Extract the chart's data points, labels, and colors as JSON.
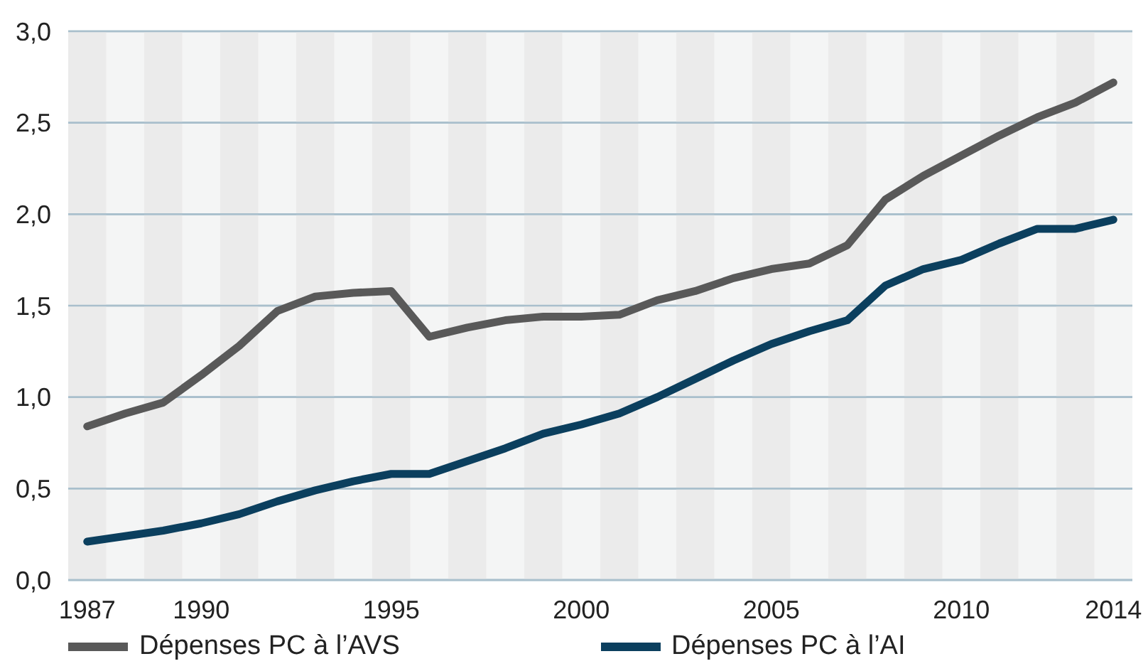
{
  "chart_data": {
    "type": "line",
    "x": [
      1987,
      1988,
      1989,
      1990,
      1991,
      1992,
      1993,
      1994,
      1995,
      1996,
      1997,
      1998,
      1999,
      2000,
      2001,
      2002,
      2003,
      2004,
      2005,
      2006,
      2007,
      2008,
      2009,
      2010,
      2011,
      2012,
      2013,
      2014
    ],
    "series": [
      {
        "name": "Dépenses PC à l’AVS",
        "color": "#595959",
        "values": [
          0.84,
          0.91,
          0.97,
          1.12,
          1.28,
          1.47,
          1.55,
          1.57,
          1.58,
          1.33,
          1.38,
          1.42,
          1.44,
          1.44,
          1.45,
          1.53,
          1.58,
          1.65,
          1.7,
          1.73,
          1.83,
          2.08,
          2.21,
          2.32,
          2.43,
          2.53,
          2.61,
          2.72
        ]
      },
      {
        "name": "Dépenses PC à l’AI",
        "color": "#0b3f5e",
        "values": [
          0.21,
          0.24,
          0.27,
          0.31,
          0.36,
          0.43,
          0.49,
          0.54,
          0.58,
          0.58,
          0.65,
          0.72,
          0.8,
          0.85,
          0.91,
          1.0,
          1.1,
          1.2,
          1.29,
          1.36,
          1.42,
          1.61,
          1.7,
          1.75,
          1.84,
          1.92,
          1.92,
          1.97
        ]
      }
    ],
    "xlim": [
      1986.5,
      2014.5
    ],
    "xticks": [
      1987,
      1990,
      1995,
      2000,
      2005,
      2010,
      2014
    ],
    "ylim": [
      0,
      3
    ],
    "yticks": [
      {
        "value": 0,
        "label": "0,0"
      },
      {
        "value": 0.5,
        "label": "0,5"
      },
      {
        "value": 1,
        "label": "1,0"
      },
      {
        "value": 1.5,
        "label": "1,5"
      },
      {
        "value": 2,
        "label": "2,0"
      },
      {
        "value": 2.5,
        "label": "2,5"
      },
      {
        "value": 3,
        "label": "3,0"
      }
    ],
    "grid": "y",
    "legend": "bottom",
    "marker": "none",
    "line_style": "solid",
    "bands": [
      {
        "axis": "x",
        "from": 1986.5,
        "to": 1987.5,
        "color": "#ebebeb"
      },
      {
        "axis": "x",
        "from": 1988.5,
        "to": 1989.5,
        "color": "#ebebeb"
      },
      {
        "axis": "x",
        "from": 1990.5,
        "to": 1991.5,
        "color": "#ebebeb"
      },
      {
        "axis": "x",
        "from": 1992.5,
        "to": 1993.5,
        "color": "#ebebeb"
      },
      {
        "axis": "x",
        "from": 1994.5,
        "to": 1995.5,
        "color": "#ebebeb"
      },
      {
        "axis": "x",
        "from": 1996.5,
        "to": 1997.5,
        "color": "#ebebeb"
      },
      {
        "axis": "x",
        "from": 1998.5,
        "to": 1999.5,
        "color": "#ebebeb"
      },
      {
        "axis": "x",
        "from": 2000.5,
        "to": 2001.5,
        "color": "#ebebeb"
      },
      {
        "axis": "x",
        "from": 2002.5,
        "to": 2003.5,
        "color": "#ebebeb"
      },
      {
        "axis": "x",
        "from": 2004.5,
        "to": 2005.5,
        "color": "#ebebeb"
      },
      {
        "axis": "x",
        "from": 2006.5,
        "to": 2007.5,
        "color": "#ebebeb"
      },
      {
        "axis": "x",
        "from": 2008.5,
        "to": 2009.5,
        "color": "#ebebeb"
      },
      {
        "axis": "x",
        "from": 2010.5,
        "to": 2011.5,
        "color": "#ebebeb"
      },
      {
        "axis": "x",
        "from": 2012.5,
        "to": 2013.5,
        "color": "#ebebeb"
      }
    ]
  }
}
